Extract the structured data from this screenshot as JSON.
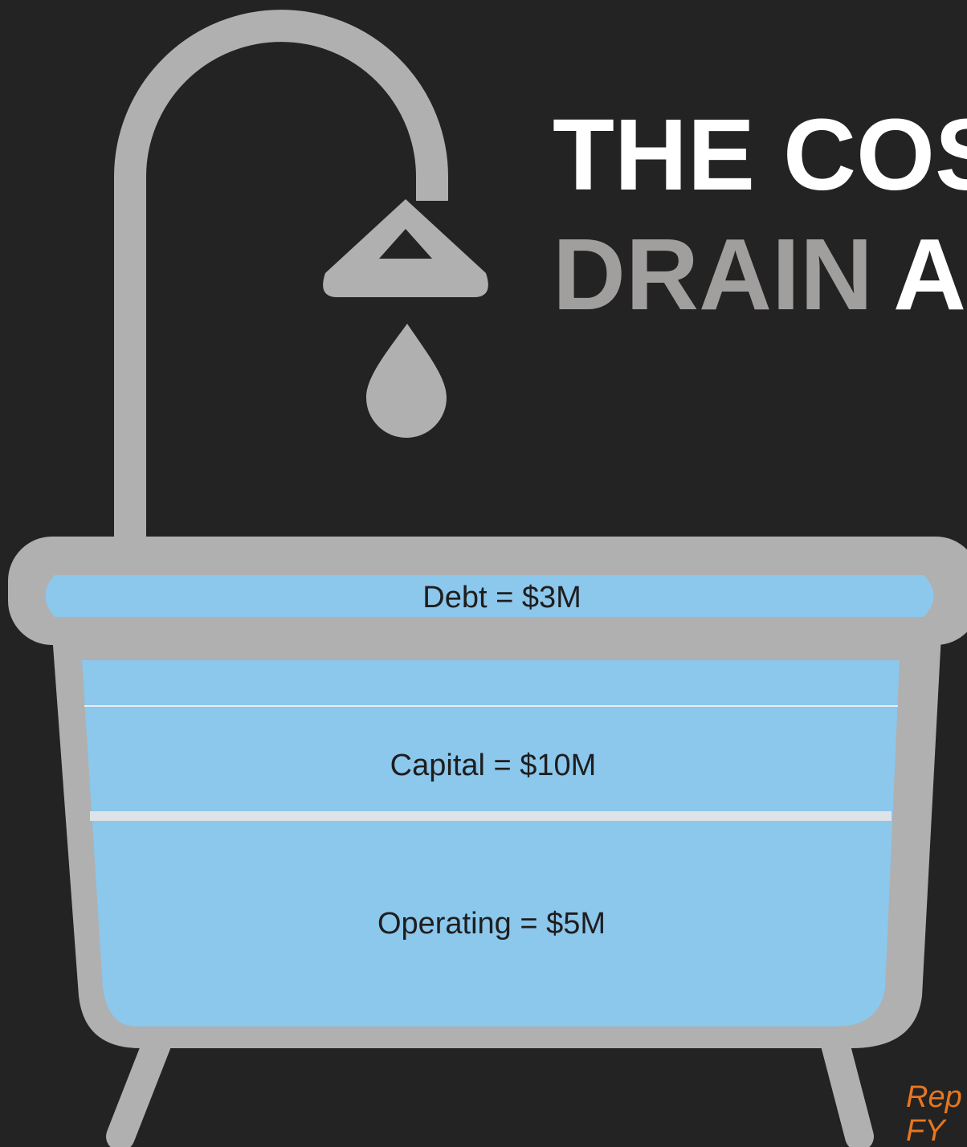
{
  "title": {
    "line1": "THE COS",
    "line2_gray": "DRAIN",
    "line2_white": "A"
  },
  "tub": {
    "sections": [
      {
        "label": "Debt = $3M"
      },
      {
        "label": "Capital = $10M"
      },
      {
        "label": "Operating = $5M"
      }
    ]
  },
  "note": {
    "lines": [
      "Rep",
      "FY"
    ]
  }
}
